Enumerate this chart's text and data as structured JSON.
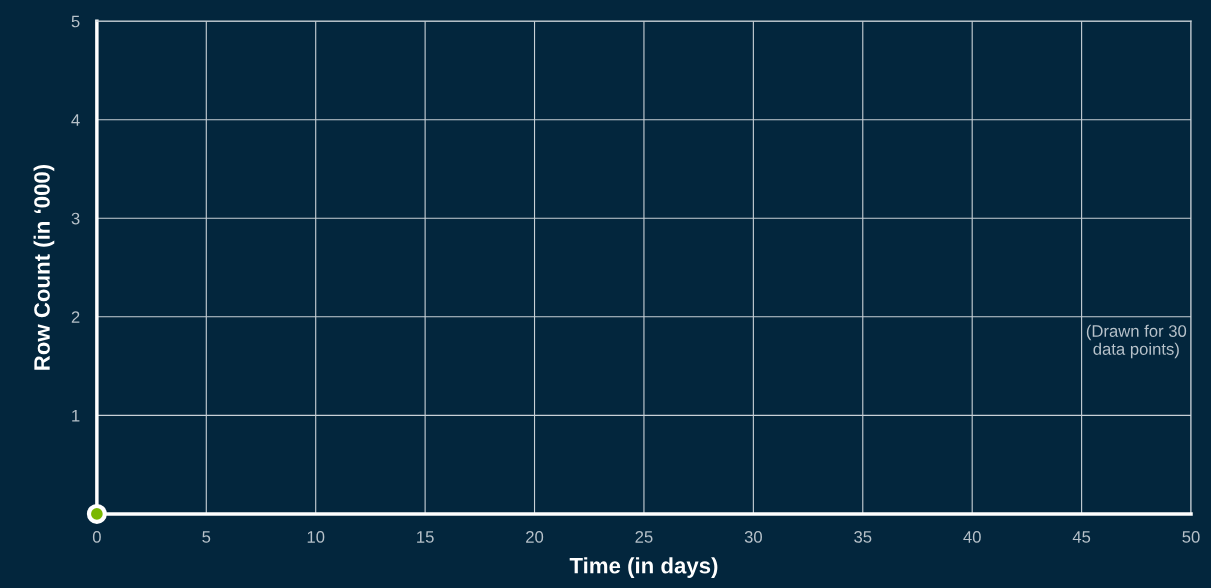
{
  "chart_data": {
    "type": "scatter",
    "xlabel": "Time (in days)",
    "ylabel": "Row Count (in ‘000)",
    "x": [
      0
    ],
    "series": [
      {
        "color": "#7ab800",
        "values": [
          0
        ]
      }
    ],
    "xlim": [
      0,
      50
    ],
    "ylim": [
      0,
      5
    ],
    "xticks": [
      0,
      5,
      10,
      15,
      20,
      25,
      30,
      35,
      40,
      45,
      50
    ],
    "yticks": [
      {
        "value": 0,
        "label": null
      },
      1,
      2,
      3,
      4,
      5
    ],
    "grid": true,
    "marker": "circle",
    "legend": false,
    "annotations": [
      "(Drawn for 30\ndata points)"
    ]
  }
}
